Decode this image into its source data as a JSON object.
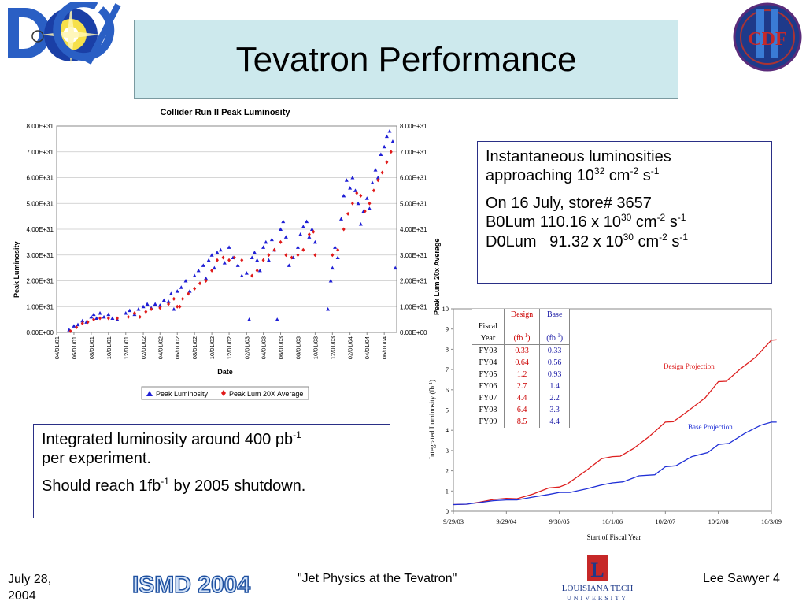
{
  "slide": {
    "title": "Tevatron Performance",
    "logos": {
      "d0": "D0 experiment logo",
      "cdf": "CDF",
      "ismd": "ISMD 2004",
      "latech": "Louisiana Tech University logo"
    },
    "footer": {
      "date_line1": "July 28,",
      "date_line2": "2004",
      "talk": "\"Jet Physics at the Tevatron\"",
      "author": "Lee Sawyer 4",
      "ismd_text": "ISMD 2004",
      "latech_line1": "LOUISIANA TECH",
      "latech_line2": "UNIVERSITY"
    }
  },
  "box_inst": {
    "l1a": "Instantaneous luminosities",
    "l1b_pre": "approaching 10",
    "l1b_exp": "32",
    "l1b_mid": " cm",
    "l1b_exp2": "-2",
    "l1b_mid2": " s",
    "l1b_exp3": "-1",
    "l2a": "On 16 July, store# 3657",
    "l2b_pre": "B0Lum 110.16 x 10",
    "l2b_exp": "30",
    "l2b_mid": " cm",
    "l2b_exp2": "-2",
    "l2b_mid2": " s",
    "l2b_exp3": "-1",
    "l2c_pre": "D0Lum   91.32 x 10",
    "l2c_exp": "30",
    "l2c_mid": " cm",
    "l2c_exp2": "-2",
    "l2c_mid2": " s",
    "l2c_exp3": "-1"
  },
  "box_int": {
    "l1_pre": "Integrated luminosity around 400 pb",
    "l1_exp": "-1",
    "l2": "per experiment.",
    "l3_pre": "Should reach 1fb",
    "l3_exp": "-1",
    "l3_post": " by 2005 shutdown."
  },
  "table": {
    "header": {
      "fiscal": "Fiscal",
      "year": "Year",
      "design": "Design",
      "base": "Base",
      "unit_pre": "(fb",
      "unit_exp": "-1",
      "unit_post": ")"
    },
    "rows": [
      {
        "year": "FY03",
        "design": "0.33",
        "base": "0.33"
      },
      {
        "year": "FY04",
        "design": "0.64",
        "base": "0.56"
      },
      {
        "year": "FY05",
        "design": "1.2",
        "base": "0.93"
      },
      {
        "year": "FY06",
        "design": "2.7",
        "base": "1.4"
      },
      {
        "year": "FY07",
        "design": "4.4",
        "base": "2.2"
      },
      {
        "year": "FY08",
        "design": "6.4",
        "base": "3.3"
      },
      {
        "year": "FY09",
        "design": "8.5",
        "base": "4.4"
      }
    ]
  },
  "colors": {
    "peak": "#1f1fd6",
    "average": "#e01919",
    "design": "#dd1f1f",
    "base": "#1f2fd6",
    "title_bg": "#cde9ed",
    "box_border": "#2a2f86"
  },
  "chart_data": [
    {
      "type": "scatter",
      "title": "Collider Run II Peak Luminosity",
      "xlabel": "Date",
      "ylabel": "Peak Luminosity",
      "y2label": "Peak Lum 20x Average",
      "xlim": [
        "2001-04-01",
        "2004-07-15"
      ],
      "ylim": [
        0,
        8e+31
      ],
      "x_ticks": [
        "04/01/01",
        "06/01/01",
        "08/01/01",
        "10/01/01",
        "12/01/01",
        "02/01/02",
        "04/01/02",
        "06/01/02",
        "08/01/02",
        "10/01/02",
        "12/01/02",
        "02/01/03",
        "04/01/03",
        "06/01/03",
        "08/01/03",
        "10/01/03",
        "12/01/03",
        "02/01/04",
        "04/01/04",
        "06/01/04"
      ],
      "y_ticks": [
        "0.00E+00",
        "1.00E+31",
        "2.00E+31",
        "3.00E+31",
        "4.00E+31",
        "5.00E+31",
        "6.00E+31",
        "7.00E+31",
        "8.00E+31"
      ],
      "grid": true,
      "legend": "bottom",
      "legend_labels": [
        "Peak Luminosity",
        "Peak Lum 20X Average"
      ],
      "series": [
        {
          "name": "Peak Luminosity",
          "marker": "triangle",
          "points": [
            [
              "2001-05-15",
              1e+30
            ],
            [
              "2001-06-01",
              2.5e+30
            ],
            [
              "2001-06-15",
              3e+30
            ],
            [
              "2001-07-01",
              4.5e+30
            ],
            [
              "2001-07-15",
              4e+30
            ],
            [
              "2001-08-01",
              6e+30
            ],
            [
              "2001-08-10",
              7e+30
            ],
            [
              "2001-08-20",
              5.5e+30
            ],
            [
              "2001-09-01",
              7.5e+30
            ],
            [
              "2001-09-15",
              6e+30
            ],
            [
              "2001-10-01",
              7e+30
            ],
            [
              "2001-10-15",
              5.5e+30
            ],
            [
              "2001-11-01",
              5e+30
            ],
            [
              "2001-12-01",
              7.5e+30
            ],
            [
              "2001-12-15",
              8.5e+30
            ],
            [
              "2002-01-01",
              7e+30
            ],
            [
              "2002-01-15",
              9e+30
            ],
            [
              "2002-02-01",
              1e+31
            ],
            [
              "2002-02-15",
              1.1e+31
            ],
            [
              "2002-03-01",
              9.5e+30
            ],
            [
              "2002-03-15",
              1.1e+31
            ],
            [
              "2002-04-01",
              1.05e+31
            ],
            [
              "2002-04-15",
              1.25e+31
            ],
            [
              "2002-05-01",
              1.2e+31
            ],
            [
              "2002-05-10",
              1.5e+31
            ],
            [
              "2002-05-20",
              9e+30
            ],
            [
              "2002-06-01",
              1.6e+31
            ],
            [
              "2002-06-15",
              1.75e+31
            ],
            [
              "2002-07-01",
              2e+31
            ],
            [
              "2002-07-15",
              1.6e+31
            ],
            [
              "2002-08-01",
              2.2e+31
            ],
            [
              "2002-08-15",
              2.4e+31
            ],
            [
              "2002-09-01",
              2.6e+31
            ],
            [
              "2002-09-10",
              2.1e+31
            ],
            [
              "2002-09-20",
              2.8e+31
            ],
            [
              "2002-10-01",
              3e+31
            ],
            [
              "2002-10-10",
              2.5e+31
            ],
            [
              "2002-10-20",
              3.1e+31
            ],
            [
              "2002-11-01",
              3.2e+31
            ],
            [
              "2002-11-15",
              2.7e+31
            ],
            [
              "2002-12-01",
              3.3e+31
            ],
            [
              "2002-12-15",
              2.9e+31
            ],
            [
              "2003-01-01",
              2.6e+31
            ],
            [
              "2003-01-15",
              2.2e+31
            ],
            [
              "2003-02-01",
              2.3e+31
            ],
            [
              "2003-02-10",
              5e+30
            ],
            [
              "2003-02-20",
              2.9e+31
            ],
            [
              "2003-03-01",
              3.1e+31
            ],
            [
              "2003-03-10",
              2.8e+31
            ],
            [
              "2003-03-20",
              2.4e+31
            ],
            [
              "2003-04-01",
              3.3e+31
            ],
            [
              "2003-04-10",
              3.5e+31
            ],
            [
              "2003-04-20",
              2.8e+31
            ],
            [
              "2003-05-01",
              3.6e+31
            ],
            [
              "2003-05-10",
              3.2e+31
            ],
            [
              "2003-05-20",
              5e+30
            ],
            [
              "2003-06-01",
              4e+31
            ],
            [
              "2003-06-10",
              4.3e+31
            ],
            [
              "2003-06-20",
              3.7e+31
            ],
            [
              "2003-07-01",
              2.6e+31
            ],
            [
              "2003-07-15",
              2.9e+31
            ],
            [
              "2003-08-01",
              3.3e+31
            ],
            [
              "2003-08-10",
              3.8e+31
            ],
            [
              "2003-08-20",
              4.1e+31
            ],
            [
              "2003-09-01",
              4.3e+31
            ],
            [
              "2003-09-10",
              3.7e+31
            ],
            [
              "2003-09-20",
              4e+31
            ],
            [
              "2003-10-01",
              3.5e+31
            ],
            [
              "2003-11-15",
              9e+30
            ],
            [
              "2003-11-25",
              2e+31
            ],
            [
              "2003-12-01",
              2.5e+31
            ],
            [
              "2003-12-10",
              3.3e+31
            ],
            [
              "2003-12-20",
              2.9e+31
            ],
            [
              "2004-01-01",
              4.4e+31
            ],
            [
              "2004-01-10",
              5.3e+31
            ],
            [
              "2004-01-20",
              5.9e+31
            ],
            [
              "2004-02-01",
              5.6e+31
            ],
            [
              "2004-02-10",
              6e+31
            ],
            [
              "2004-02-20",
              5.5e+31
            ],
            [
              "2004-03-01",
              5e+31
            ],
            [
              "2004-03-10",
              4.2e+31
            ],
            [
              "2004-03-20",
              4.7e+31
            ],
            [
              "2004-04-01",
              5.2e+31
            ],
            [
              "2004-04-10",
              4.8e+31
            ],
            [
              "2004-04-20",
              5.8e+31
            ],
            [
              "2004-05-01",
              6.3e+31
            ],
            [
              "2004-05-10",
              6e+31
            ],
            [
              "2004-05-20",
              6.9e+31
            ],
            [
              "2004-06-01",
              7.2e+31
            ],
            [
              "2004-06-10",
              7.6e+31
            ],
            [
              "2004-06-20",
              7.8e+31
            ],
            [
              "2004-07-01",
              7.4e+31
            ],
            [
              "2004-07-10",
              2.5e+31
            ]
          ]
        },
        {
          "name": "Peak Lum 20X Average",
          "marker": "diamond",
          "points": [
            [
              "2001-05-20",
              5e+29
            ],
            [
              "2001-06-10",
              2e+30
            ],
            [
              "2001-07-01",
              3.5e+30
            ],
            [
              "2001-07-20",
              4e+30
            ],
            [
              "2001-08-10",
              5e+30
            ],
            [
              "2001-09-01",
              5.5e+30
            ],
            [
              "2001-10-01",
              5.5e+30
            ],
            [
              "2001-11-01",
              5.5e+30
            ],
            [
              "2001-12-10",
              6e+30
            ],
            [
              "2002-01-01",
              7.5e+30
            ],
            [
              "2002-01-20",
              6e+30
            ],
            [
              "2002-02-10",
              8e+30
            ],
            [
              "2002-03-01",
              9e+30
            ],
            [
              "2002-04-01",
              9.5e+30
            ],
            [
              "2002-05-01",
              1.1e+31
            ],
            [
              "2002-05-20",
              1.3e+31
            ],
            [
              "2002-06-01",
              1e+31
            ],
            [
              "2002-06-10",
              1e+31
            ],
            [
              "2002-06-20",
              1.3e+31
            ],
            [
              "2002-07-10",
              1.5e+31
            ],
            [
              "2002-08-01",
              1.7e+31
            ],
            [
              "2002-08-20",
              1.9e+31
            ],
            [
              "2002-09-10",
              2e+31
            ],
            [
              "2002-10-01",
              2.4e+31
            ],
            [
              "2002-10-20",
              2.8e+31
            ],
            [
              "2002-11-10",
              2.9e+31
            ],
            [
              "2002-12-01",
              2.8e+31
            ],
            [
              "2002-12-20",
              2.9e+31
            ],
            [
              "2003-01-15",
              2.8e+31
            ],
            [
              "2003-02-20",
              2.2e+31
            ],
            [
              "2003-03-10",
              2.4e+31
            ],
            [
              "2003-04-01",
              2.8e+31
            ],
            [
              "2003-04-20",
              3e+31
            ],
            [
              "2003-05-10",
              3.2e+31
            ],
            [
              "2003-06-01",
              3.5e+31
            ],
            [
              "2003-06-20",
              3e+31
            ],
            [
              "2003-07-10",
              2.9e+31
            ],
            [
              "2003-08-01",
              3e+31
            ],
            [
              "2003-08-20",
              3.2e+31
            ],
            [
              "2003-09-10",
              3.8e+31
            ],
            [
              "2003-09-25",
              3.9e+31
            ],
            [
              "2003-10-01",
              3e+31
            ],
            [
              "2003-12-01",
              3e+31
            ],
            [
              "2003-12-20",
              3.2e+31
            ],
            [
              "2004-01-10",
              4e+31
            ],
            [
              "2004-01-25",
              4.6e+31
            ],
            [
              "2004-02-10",
              5e+31
            ],
            [
              "2004-02-25",
              5.4e+31
            ],
            [
              "2004-03-10",
              5.3e+31
            ],
            [
              "2004-03-25",
              4.7e+31
            ],
            [
              "2004-04-10",
              5e+31
            ],
            [
              "2004-04-25",
              5.5e+31
            ],
            [
              "2004-05-10",
              5.9e+31
            ],
            [
              "2004-05-25",
              6.2e+31
            ],
            [
              "2004-06-10",
              6.6e+31
            ],
            [
              "2004-06-25",
              7e+31
            ]
          ]
        }
      ]
    },
    {
      "type": "line",
      "xlabel": "Start of Fiscal Year",
      "ylabel_pre": "Integrated Luminosity  (fb",
      "ylabel_exp": "-1",
      "ylabel_post": ")",
      "ylim": [
        0,
        10
      ],
      "x_ticks": [
        "9/29/03",
        "9/29/04",
        "9/30/05",
        "10/1/06",
        "10/2/07",
        "10/2/08",
        "10/3/09"
      ],
      "y_ticks": [
        "0",
        "1",
        "2",
        "3",
        "4",
        "5",
        "6",
        "7",
        "8",
        "9",
        "10"
      ],
      "annotations": [
        "Design Projection",
        "Base Projection"
      ],
      "series": [
        {
          "name": "Design",
          "points": [
            [
              0,
              0.33
            ],
            [
              0.25,
              0.35
            ],
            [
              0.5,
              0.45
            ],
            [
              0.75,
              0.58
            ],
            [
              1,
              0.64
            ],
            [
              1.2,
              0.62
            ],
            [
              1.5,
              0.85
            ],
            [
              1.8,
              1.15
            ],
            [
              2,
              1.2
            ],
            [
              2.15,
              1.35
            ],
            [
              2.5,
              2.0
            ],
            [
              2.8,
              2.6
            ],
            [
              3,
              2.7
            ],
            [
              3.15,
              2.72
            ],
            [
              3.4,
              3.1
            ],
            [
              3.7,
              3.7
            ],
            [
              4,
              4.4
            ],
            [
              4.15,
              4.42
            ],
            [
              4.4,
              4.9
            ],
            [
              4.75,
              5.6
            ],
            [
              5,
              6.4
            ],
            [
              5.15,
              6.42
            ],
            [
              5.4,
              7.0
            ],
            [
              5.7,
              7.6
            ],
            [
              6,
              8.45
            ],
            [
              6.1,
              8.47
            ]
          ]
        },
        {
          "name": "Base",
          "points": [
            [
              0,
              0.33
            ],
            [
              0.25,
              0.35
            ],
            [
              0.5,
              0.43
            ],
            [
              0.75,
              0.52
            ],
            [
              1,
              0.56
            ],
            [
              1.2,
              0.56
            ],
            [
              1.5,
              0.7
            ],
            [
              1.8,
              0.83
            ],
            [
              2,
              0.93
            ],
            [
              2.2,
              0.93
            ],
            [
              2.5,
              1.1
            ],
            [
              2.8,
              1.3
            ],
            [
              3,
              1.4
            ],
            [
              3.2,
              1.45
            ],
            [
              3.5,
              1.75
            ],
            [
              3.8,
              1.8
            ],
            [
              4,
              2.2
            ],
            [
              4.2,
              2.25
            ],
            [
              4.5,
              2.7
            ],
            [
              4.8,
              2.9
            ],
            [
              5,
              3.3
            ],
            [
              5.2,
              3.35
            ],
            [
              5.5,
              3.85
            ],
            [
              5.8,
              4.25
            ],
            [
              6,
              4.4
            ],
            [
              6.1,
              4.4
            ]
          ]
        }
      ]
    }
  ]
}
